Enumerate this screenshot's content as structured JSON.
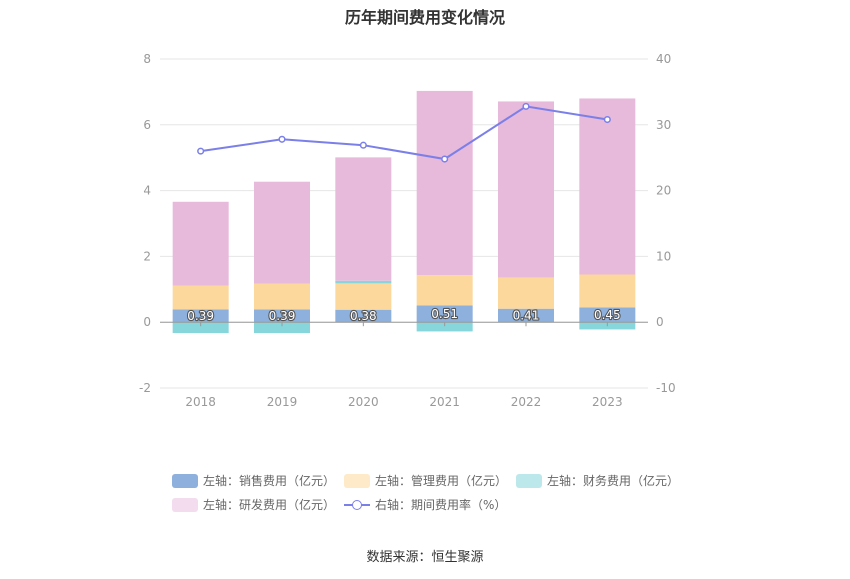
{
  "chart_data": {
    "type": "bar",
    "title": "历年期间费用变化情况",
    "categories": [
      "2018",
      "2019",
      "2020",
      "2021",
      "2022",
      "2023"
    ],
    "left_axis": {
      "ylim": [
        -2,
        8
      ],
      "ticks": [
        "-2",
        "0",
        "2",
        "4",
        "6",
        "8"
      ]
    },
    "right_axis": {
      "ylim": [
        -10,
        40
      ],
      "ticks": [
        "-10",
        "0",
        "10",
        "20",
        "30",
        "40"
      ]
    },
    "stacked": true,
    "series": [
      {
        "name": "左轴：销售费用（亿元）",
        "axis": "left",
        "color": "#8eb0dc",
        "values": [
          0.39,
          0.39,
          0.38,
          0.51,
          0.41,
          0.45
        ],
        "labels": [
          "0.39",
          "0.39",
          "0.38",
          "0.51",
          "0.41",
          "0.45"
        ]
      },
      {
        "name": "左轴：管理费用（亿元）",
        "axis": "left",
        "color": "#fdd89d",
        "values": [
          0.72,
          0.78,
          0.8,
          0.92,
          0.95,
          1.0
        ]
      },
      {
        "name": "左轴：财务费用（亿元）",
        "axis": "left",
        "color": "#86d6db",
        "values": [
          -0.33,
          -0.33,
          0.08,
          -0.28,
          -0.01,
          -0.22
        ]
      },
      {
        "name": "左轴：研发费用（亿元）",
        "axis": "left",
        "color": "#e7b9db",
        "values": [
          2.55,
          3.1,
          3.75,
          5.6,
          5.35,
          5.35
        ]
      },
      {
        "name": "右轴：期间费用率（%）",
        "axis": "right",
        "type": "line",
        "color": "#7b7fe8",
        "values": [
          26.0,
          27.8,
          26.9,
          24.8,
          32.8,
          30.8
        ]
      }
    ],
    "grid": true,
    "legend_position": "bottom"
  },
  "source_text": "数据来源：恒生聚源"
}
